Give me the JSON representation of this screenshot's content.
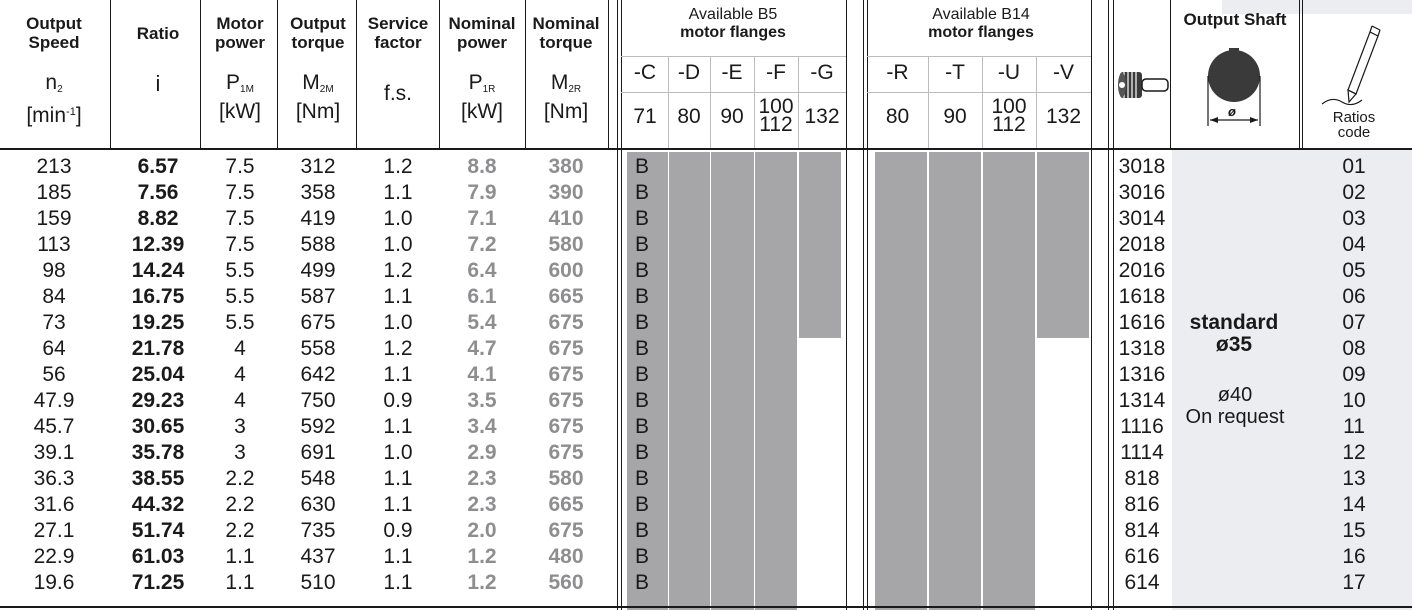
{
  "headers": {
    "output_speed": [
      "Output",
      "Speed"
    ],
    "ratio": "Ratio",
    "motor_power": [
      "Motor",
      "power"
    ],
    "output_torque": [
      "Output",
      "torque"
    ],
    "service_factor": [
      "Service",
      "factor"
    ],
    "nominal_power": [
      "Nominal",
      "power"
    ],
    "nominal_torque": [
      "Nominal",
      "torque"
    ],
    "sym_speed": "n",
    "sym_speed_sub": "2",
    "unit_speed": "[min",
    "unit_speed_sup": "-1",
    "unit_speed_end": "]",
    "sym_ratio": "i",
    "sym_motor_power": "P",
    "sym_motor_power_sub": "1M",
    "unit_kw": "[kW]",
    "sym_output_torque": "M",
    "sym_output_torque_sub": "2M",
    "unit_nm": "[Nm]",
    "sym_service_factor": "f.s.",
    "sym_nominal_power": "P",
    "sym_nominal_power_sub": "1R",
    "unit_kw2": "[kW]",
    "sym_nominal_torque": "M",
    "sym_nominal_torque_sub": "2R",
    "unit_nm2": "[Nm]",
    "b5_title": "Available B5",
    "b5_subtitle": "motor flanges",
    "b14_title": "Available B14",
    "b14_subtitle": "motor flanges",
    "output_shaft": "Output Shaft",
    "ratios_code": [
      "Ratios",
      "code"
    ]
  },
  "b5_flanges": [
    {
      "code": "-C",
      "size": "71"
    },
    {
      "code": "-D",
      "size": "80"
    },
    {
      "code": "-E",
      "size": "90"
    },
    {
      "code": "-F",
      "size": [
        "100",
        "112"
      ]
    },
    {
      "code": "-G",
      "size": "132"
    }
  ],
  "b14_flanges": [
    {
      "code": "-R",
      "size": "80"
    },
    {
      "code": "-T",
      "size": "90"
    },
    {
      "code": "-U",
      "size": [
        "100",
        "112"
      ]
    },
    {
      "code": "-V",
      "size": "132"
    }
  ],
  "flange_mark": "B",
  "shaft_icon_label": "ø",
  "shaft": {
    "standard": "standard",
    "standard_dia": "ø35",
    "option_dia": "ø40",
    "option_note": "On request"
  },
  "rows": [
    {
      "speed": "213",
      "ratio": "6.57",
      "motor_power": "7.5",
      "output_torque": "312",
      "sf": "1.2",
      "nom_power": "8.8",
      "nom_torque": "380",
      "wormcode": "3018",
      "code": "01"
    },
    {
      "speed": "185",
      "ratio": "7.56",
      "motor_power": "7.5",
      "output_torque": "358",
      "sf": "1.1",
      "nom_power": "7.9",
      "nom_torque": "390",
      "wormcode": "3016",
      "code": "02"
    },
    {
      "speed": "159",
      "ratio": "8.82",
      "motor_power": "7.5",
      "output_torque": "419",
      "sf": "1.0",
      "nom_power": "7.1",
      "nom_torque": "410",
      "wormcode": "3014",
      "code": "03"
    },
    {
      "speed": "113",
      "ratio": "12.39",
      "motor_power": "7.5",
      "output_torque": "588",
      "sf": "1.0",
      "nom_power": "7.2",
      "nom_torque": "580",
      "wormcode": "2018",
      "code": "04"
    },
    {
      "speed": "98",
      "ratio": "14.24",
      "motor_power": "5.5",
      "output_torque": "499",
      "sf": "1.2",
      "nom_power": "6.4",
      "nom_torque": "600",
      "wormcode": "2016",
      "code": "05"
    },
    {
      "speed": "84",
      "ratio": "16.75",
      "motor_power": "5.5",
      "output_torque": "587",
      "sf": "1.1",
      "nom_power": "6.1",
      "nom_torque": "665",
      "wormcode": "1618",
      "code": "06"
    },
    {
      "speed": "73",
      "ratio": "19.25",
      "motor_power": "5.5",
      "output_torque": "675",
      "sf": "1.0",
      "nom_power": "5.4",
      "nom_torque": "675",
      "wormcode": "1616",
      "code": "07"
    },
    {
      "speed": "64",
      "ratio": "21.78",
      "motor_power": "4",
      "output_torque": "558",
      "sf": "1.2",
      "nom_power": "4.7",
      "nom_torque": "675",
      "wormcode": "1318",
      "code": "08"
    },
    {
      "speed": "56",
      "ratio": "25.04",
      "motor_power": "4",
      "output_torque": "642",
      "sf": "1.1",
      "nom_power": "4.1",
      "nom_torque": "675",
      "wormcode": "1316",
      "code": "09"
    },
    {
      "speed": "47.9",
      "ratio": "29.23",
      "motor_power": "4",
      "output_torque": "750",
      "sf": "0.9",
      "nom_power": "3.5",
      "nom_torque": "675",
      "wormcode": "1314",
      "code": "10"
    },
    {
      "speed": "45.7",
      "ratio": "30.65",
      "motor_power": "3",
      "output_torque": "592",
      "sf": "1.1",
      "nom_power": "3.4",
      "nom_torque": "675",
      "wormcode": "1116",
      "code": "11"
    },
    {
      "speed": "39.1",
      "ratio": "35.78",
      "motor_power": "3",
      "output_torque": "691",
      "sf": "1.0",
      "nom_power": "2.9",
      "nom_torque": "675",
      "wormcode": "1114",
      "code": "12"
    },
    {
      "speed": "36.3",
      "ratio": "38.55",
      "motor_power": "2.2",
      "output_torque": "548",
      "sf": "1.1",
      "nom_power": "2.3",
      "nom_torque": "580",
      "wormcode": "818",
      "code": "13"
    },
    {
      "speed": "31.6",
      "ratio": "44.32",
      "motor_power": "2.2",
      "output_torque": "630",
      "sf": "1.1",
      "nom_power": "2.3",
      "nom_torque": "665",
      "wormcode": "816",
      "code": "14"
    },
    {
      "speed": "27.1",
      "ratio": "51.74",
      "motor_power": "2.2",
      "output_torque": "735",
      "sf": "0.9",
      "nom_power": "2.0",
      "nom_torque": "675",
      "wormcode": "814",
      "code": "15"
    },
    {
      "speed": "22.9",
      "ratio": "61.03",
      "motor_power": "1.1",
      "output_torque": "437",
      "sf": "1.1",
      "nom_power": "1.2",
      "nom_torque": "480",
      "wormcode": "616",
      "code": "16"
    },
    {
      "speed": "19.6",
      "ratio": "71.25",
      "motor_power": "1.1",
      "output_torque": "510",
      "sf": "1.1",
      "nom_power": "1.2",
      "nom_torque": "560",
      "wormcode": "614",
      "code": "17"
    }
  ],
  "colors": {
    "text": "#1a1a1a",
    "nominal_text": "#8e8e91",
    "flange_fill": "#a6a6a9",
    "panel": "#ecedf0"
  }
}
